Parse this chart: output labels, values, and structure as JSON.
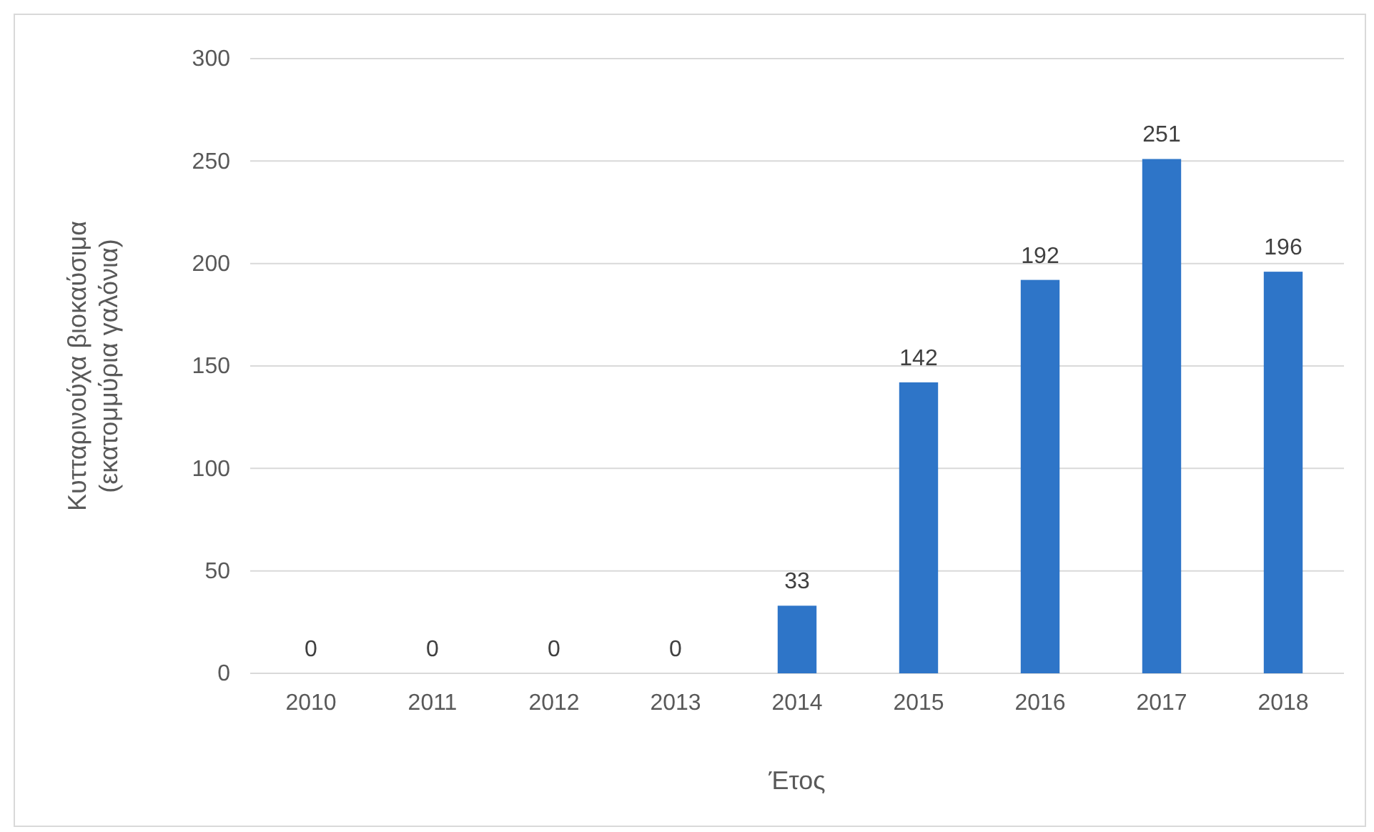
{
  "chart_data": {
    "type": "bar",
    "xlabel": "Έτος",
    "ylabel": "Κυτταρινούχα βιοκαύσιμα\n(εκατομμύρια γαλόνια)",
    "categories": [
      "2010",
      "2011",
      "2012",
      "2013",
      "2014",
      "2015",
      "2016",
      "2017",
      "2018"
    ],
    "values": [
      0,
      0,
      0,
      0,
      33,
      142,
      192,
      251,
      196
    ],
    "color": "#2e75c8",
    "ylim": [
      0,
      300
    ],
    "yticks": [
      0,
      50,
      100,
      150,
      200,
      250,
      300
    ],
    "grid": "y",
    "data_labels": true
  }
}
